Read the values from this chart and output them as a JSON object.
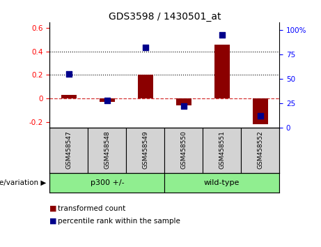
{
  "title": "GDS3598 / 1430501_at",
  "samples": [
    "GSM458547",
    "GSM458548",
    "GSM458549",
    "GSM458550",
    "GSM458551",
    "GSM458552"
  ],
  "transformed_count": [
    0.03,
    -0.03,
    0.205,
    -0.06,
    0.46,
    -0.22
  ],
  "percentile_rank": [
    55,
    28,
    82,
    22,
    95,
    12
  ],
  "groups": [
    {
      "label": "p300 +/-",
      "start": 0,
      "end": 3
    },
    {
      "label": "wild-type",
      "start": 3,
      "end": 6
    }
  ],
  "group_label_prefix": "genotype/variation",
  "ylim_left": [
    -0.25,
    0.65
  ],
  "ylim_right": [
    0,
    108.0
  ],
  "yticks_left": [
    -0.2,
    0.0,
    0.2,
    0.4,
    0.6
  ],
  "yticks_right": [
    0,
    25,
    50,
    75,
    100
  ],
  "ytick_labels_left": [
    "-0.2",
    "0",
    "0.2",
    "0.4",
    "0.6"
  ],
  "ytick_labels_right": [
    "0",
    "25",
    "50",
    "75",
    "100%"
  ],
  "hlines_dotted": [
    0.2,
    0.4
  ],
  "bar_color": "#8B0000",
  "dot_color": "#00008B",
  "zero_line_color": "#CC0000",
  "bar_width": 0.4,
  "legend_items": [
    "transformed count",
    "percentile rank within the sample"
  ],
  "background_color": "#ffffff",
  "plot_bg": "#ffffff",
  "group_color": "#90EE90",
  "xlabel_bg": "#d3d3d3",
  "title_fontsize": 10,
  "tick_fontsize": 7.5,
  "label_fontsize": 7.5
}
